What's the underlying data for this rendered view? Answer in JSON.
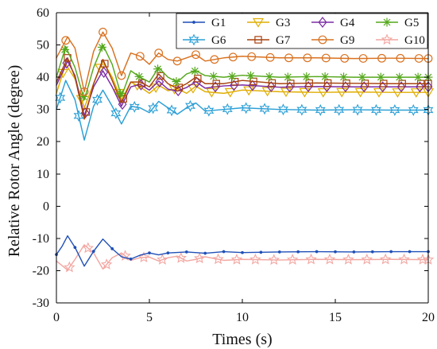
{
  "chart_data": {
    "type": "line",
    "xlabel": "Times (s)",
    "ylabel": "Relative Rotor Angle (degree)",
    "xlim": [
      0,
      20
    ],
    "ylim": [
      -30,
      60
    ],
    "xticks": [
      0,
      5,
      10,
      15,
      20
    ],
    "yticks": [
      -30,
      -20,
      -10,
      0,
      10,
      20,
      30,
      40,
      50,
      60
    ],
    "grid": false,
    "legend_placement": "top-right",
    "series": [
      {
        "name": "G1",
        "color": "#1f4fb7",
        "marker": "point",
        "points": [
          [
            0,
            -15.0
          ],
          [
            0.3,
            -12.5
          ],
          [
            0.6,
            -9.2
          ],
          [
            1.0,
            -12.8
          ],
          [
            1.5,
            -18.6
          ],
          [
            2.0,
            -14.0
          ],
          [
            2.5,
            -10.2
          ],
          [
            3.0,
            -13.2
          ],
          [
            3.5,
            -15.7
          ],
          [
            4.0,
            -16.4
          ],
          [
            4.5,
            -15.2
          ],
          [
            5.0,
            -14.5
          ],
          [
            5.5,
            -15.1
          ],
          [
            6.0,
            -14.5
          ],
          [
            7.0,
            -14.2
          ],
          [
            8.0,
            -14.6
          ],
          [
            9.0,
            -14.1
          ],
          [
            10.0,
            -14.4
          ],
          [
            12.0,
            -14.2
          ],
          [
            14.0,
            -14.1
          ],
          [
            16.0,
            -14.2
          ],
          [
            18.0,
            -14.1
          ],
          [
            20.0,
            -14.1
          ]
        ]
      },
      {
        "name": "G3",
        "color": "#e0ad00",
        "marker": "triangle-down",
        "points": [
          [
            0,
            35.0
          ],
          [
            0.5,
            44.0
          ],
          [
            1.0,
            39.5
          ],
          [
            1.5,
            30.5
          ],
          [
            2.0,
            38.0
          ],
          [
            2.5,
            45.0
          ],
          [
            3.0,
            40.0
          ],
          [
            3.5,
            33.0
          ],
          [
            4.0,
            38.5
          ],
          [
            4.5,
            37.0
          ],
          [
            5.0,
            35.0
          ],
          [
            5.5,
            37.5
          ],
          [
            6.0,
            35.8
          ],
          [
            6.5,
            36.5
          ],
          [
            7.0,
            35.0
          ],
          [
            7.5,
            37.2
          ],
          [
            8.0,
            35.5
          ],
          [
            9.0,
            35.0
          ],
          [
            10.0,
            36.0
          ],
          [
            12.0,
            35.5
          ],
          [
            14.0,
            35.3
          ],
          [
            16.0,
            35.4
          ],
          [
            18.0,
            35.3
          ],
          [
            20.0,
            35.3
          ]
        ]
      },
      {
        "name": "G4",
        "color": "#7b2ba3",
        "marker": "diamond",
        "points": [
          [
            0,
            37.5
          ],
          [
            0.6,
            45.0
          ],
          [
            1.0,
            40.5
          ],
          [
            1.5,
            28.0
          ],
          [
            2.0,
            37.0
          ],
          [
            2.5,
            42.0
          ],
          [
            3.0,
            37.0
          ],
          [
            3.5,
            31.0
          ],
          [
            4.0,
            37.0
          ],
          [
            4.5,
            37.8
          ],
          [
            5.0,
            36.0
          ],
          [
            5.5,
            38.8
          ],
          [
            6.0,
            36.3
          ],
          [
            6.5,
            35.7
          ],
          [
            7.0,
            36.8
          ],
          [
            7.5,
            38.6
          ],
          [
            8.0,
            36.6
          ],
          [
            9.0,
            37.3
          ],
          [
            10.0,
            37.6
          ],
          [
            12.0,
            36.9
          ],
          [
            14.0,
            37.1
          ],
          [
            16.0,
            37.0
          ],
          [
            18.0,
            37.0
          ],
          [
            20.0,
            37.0
          ]
        ]
      },
      {
        "name": "G5",
        "color": "#55a81c",
        "marker": "star",
        "points": [
          [
            0,
            40.0
          ],
          [
            0.5,
            49.5
          ],
          [
            1.0,
            43.0
          ],
          [
            1.5,
            33.0
          ],
          [
            2.0,
            43.0
          ],
          [
            2.5,
            50.0
          ],
          [
            3.0,
            44.0
          ],
          [
            3.5,
            34.0
          ],
          [
            4.0,
            42.0
          ],
          [
            4.5,
            40.0
          ],
          [
            5.0,
            38.5
          ],
          [
            5.5,
            43.0
          ],
          [
            6.0,
            40.0
          ],
          [
            6.5,
            38.5
          ],
          [
            7.0,
            41.0
          ],
          [
            7.5,
            42.0
          ],
          [
            8.0,
            40.5
          ],
          [
            9.0,
            40.0
          ],
          [
            10.0,
            40.6
          ],
          [
            12.0,
            40.0
          ],
          [
            14.0,
            40.2
          ],
          [
            16.0,
            40.0
          ],
          [
            18.0,
            40.0
          ],
          [
            20.0,
            40.0
          ]
        ]
      },
      {
        "name": "G6",
        "color": "#2a9fd6",
        "marker": "hexagram",
        "points": [
          [
            0,
            30.0
          ],
          [
            0.5,
            39.0
          ],
          [
            1.0,
            33.0
          ],
          [
            1.5,
            20.5
          ],
          [
            2.0,
            31.0
          ],
          [
            2.5,
            36.0
          ],
          [
            3.0,
            31.0
          ],
          [
            3.5,
            25.5
          ],
          [
            4.0,
            31.0
          ],
          [
            4.5,
            30.5
          ],
          [
            5.0,
            29.0
          ],
          [
            5.5,
            32.5
          ],
          [
            6.0,
            30.5
          ],
          [
            6.5,
            28.5
          ],
          [
            7.0,
            30.5
          ],
          [
            7.5,
            32.0
          ],
          [
            8.0,
            29.5
          ],
          [
            9.0,
            30.0
          ],
          [
            10.0,
            30.5
          ],
          [
            12.0,
            30.0
          ],
          [
            14.0,
            29.8
          ],
          [
            16.0,
            29.9
          ],
          [
            18.0,
            29.8
          ],
          [
            20.0,
            29.8
          ]
        ]
      },
      {
        "name": "G7",
        "color": "#a8420f",
        "marker": "square",
        "points": [
          [
            0,
            38.5
          ],
          [
            0.6,
            46.0
          ],
          [
            1.0,
            40.0
          ],
          [
            1.5,
            27.0
          ],
          [
            2.0,
            38.0
          ],
          [
            2.5,
            45.5
          ],
          [
            3.0,
            39.0
          ],
          [
            3.5,
            32.0
          ],
          [
            4.0,
            38.5
          ],
          [
            4.5,
            38.5
          ],
          [
            5.0,
            37.0
          ],
          [
            5.5,
            41.0
          ],
          [
            6.0,
            38.0
          ],
          [
            6.5,
            36.5
          ],
          [
            7.0,
            38.0
          ],
          [
            7.5,
            40.0
          ],
          [
            8.0,
            38.0
          ],
          [
            9.0,
            38.0
          ],
          [
            10.0,
            39.0
          ],
          [
            12.0,
            38.0
          ],
          [
            14.0,
            38.2
          ],
          [
            16.0,
            38.1
          ],
          [
            18.0,
            38.0
          ],
          [
            20.0,
            38.0
          ]
        ]
      },
      {
        "name": "G9",
        "color": "#d9711f",
        "marker": "circle",
        "points": [
          [
            0,
            46.0
          ],
          [
            0.6,
            52.5
          ],
          [
            1.0,
            49.0
          ],
          [
            1.5,
            35.5
          ],
          [
            2.0,
            48.0
          ],
          [
            2.5,
            54.0
          ],
          [
            3.0,
            49.0
          ],
          [
            3.5,
            40.5
          ],
          [
            4.0,
            47.5
          ],
          [
            4.5,
            46.5
          ],
          [
            5.0,
            44.0
          ],
          [
            5.5,
            47.5
          ],
          [
            6.0,
            45.5
          ],
          [
            6.5,
            45.0
          ],
          [
            7.0,
            46.0
          ],
          [
            7.5,
            47.0
          ],
          [
            8.0,
            45.0
          ],
          [
            9.0,
            46.0
          ],
          [
            10.0,
            46.5
          ],
          [
            12.0,
            46.0
          ],
          [
            14.0,
            46.0
          ],
          [
            16.0,
            45.8
          ],
          [
            18.0,
            45.9
          ],
          [
            20.0,
            45.8
          ]
        ]
      },
      {
        "name": "G10",
        "color": "#f2a6a1",
        "marker": "pentagram",
        "points": [
          [
            0,
            -17.0
          ],
          [
            0.6,
            -19.8
          ],
          [
            1.0,
            -16.5
          ],
          [
            1.5,
            -12.0
          ],
          [
            2.0,
            -14.5
          ],
          [
            2.5,
            -19.5
          ],
          [
            3.0,
            -16.0
          ],
          [
            3.5,
            -14.5
          ],
          [
            4.0,
            -16.8
          ],
          [
            4.5,
            -16.0
          ],
          [
            5.0,
            -15.8
          ],
          [
            5.5,
            -17.0
          ],
          [
            6.0,
            -16.0
          ],
          [
            6.5,
            -15.5
          ],
          [
            7.0,
            -17.0
          ],
          [
            7.5,
            -16.5
          ],
          [
            8.0,
            -15.7
          ],
          [
            9.0,
            -16.8
          ],
          [
            10.0,
            -16.5
          ],
          [
            12.0,
            -16.7
          ],
          [
            14.0,
            -16.5
          ],
          [
            16.0,
            -16.6
          ],
          [
            18.0,
            -16.5
          ],
          [
            20.0,
            -16.6
          ]
        ]
      }
    ]
  }
}
